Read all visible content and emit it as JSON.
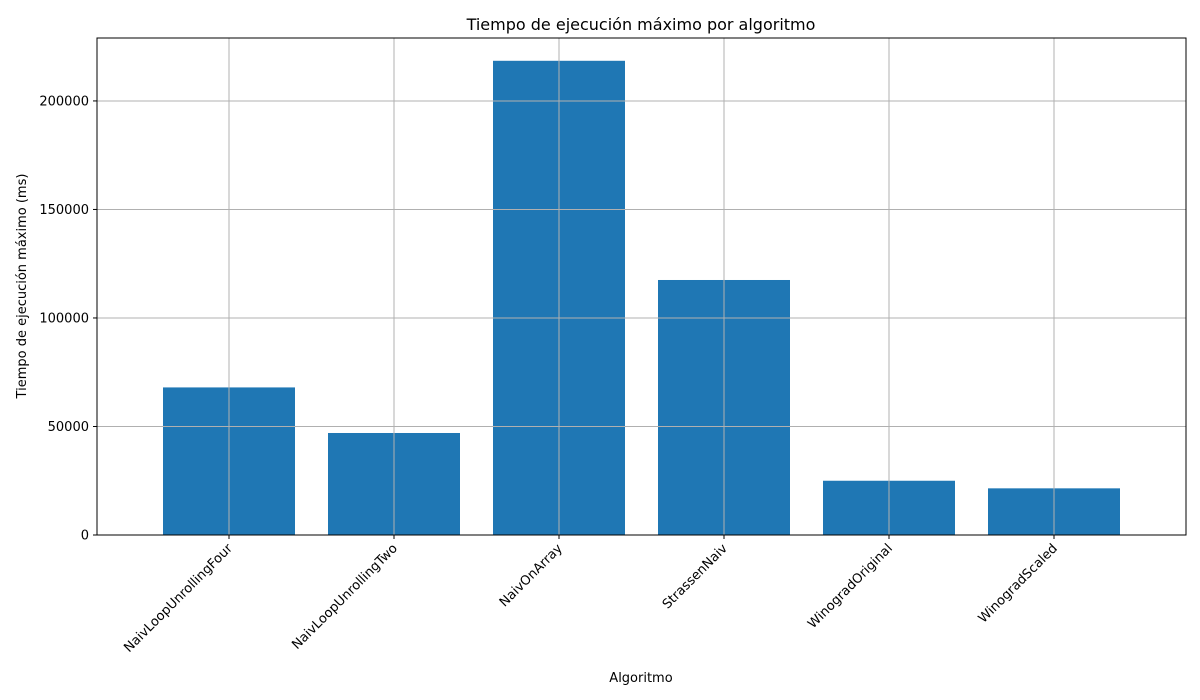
{
  "chart_data": {
    "type": "bar",
    "title": "Tiempo de ejecución máximo por algoritmo",
    "xlabel": "Algoritmo",
    "ylabel": "Tiempo de ejecución máximo (ms)",
    "categories": [
      "NaivLoopUnrollingFour",
      "NaivLoopUnrollingTwo",
      "NaivOnArray",
      "StrassenNaiv",
      "WinogradOriginal",
      "WinogradScaled"
    ],
    "values": [
      68000,
      47000,
      218500,
      117500,
      25000,
      21500
    ],
    "ylim": [
      0,
      229000
    ],
    "yticks": [
      0,
      50000,
      100000,
      150000,
      200000
    ],
    "grid": true,
    "bar_color": "#1f77b4",
    "grid_color": "#b0b0b0"
  }
}
